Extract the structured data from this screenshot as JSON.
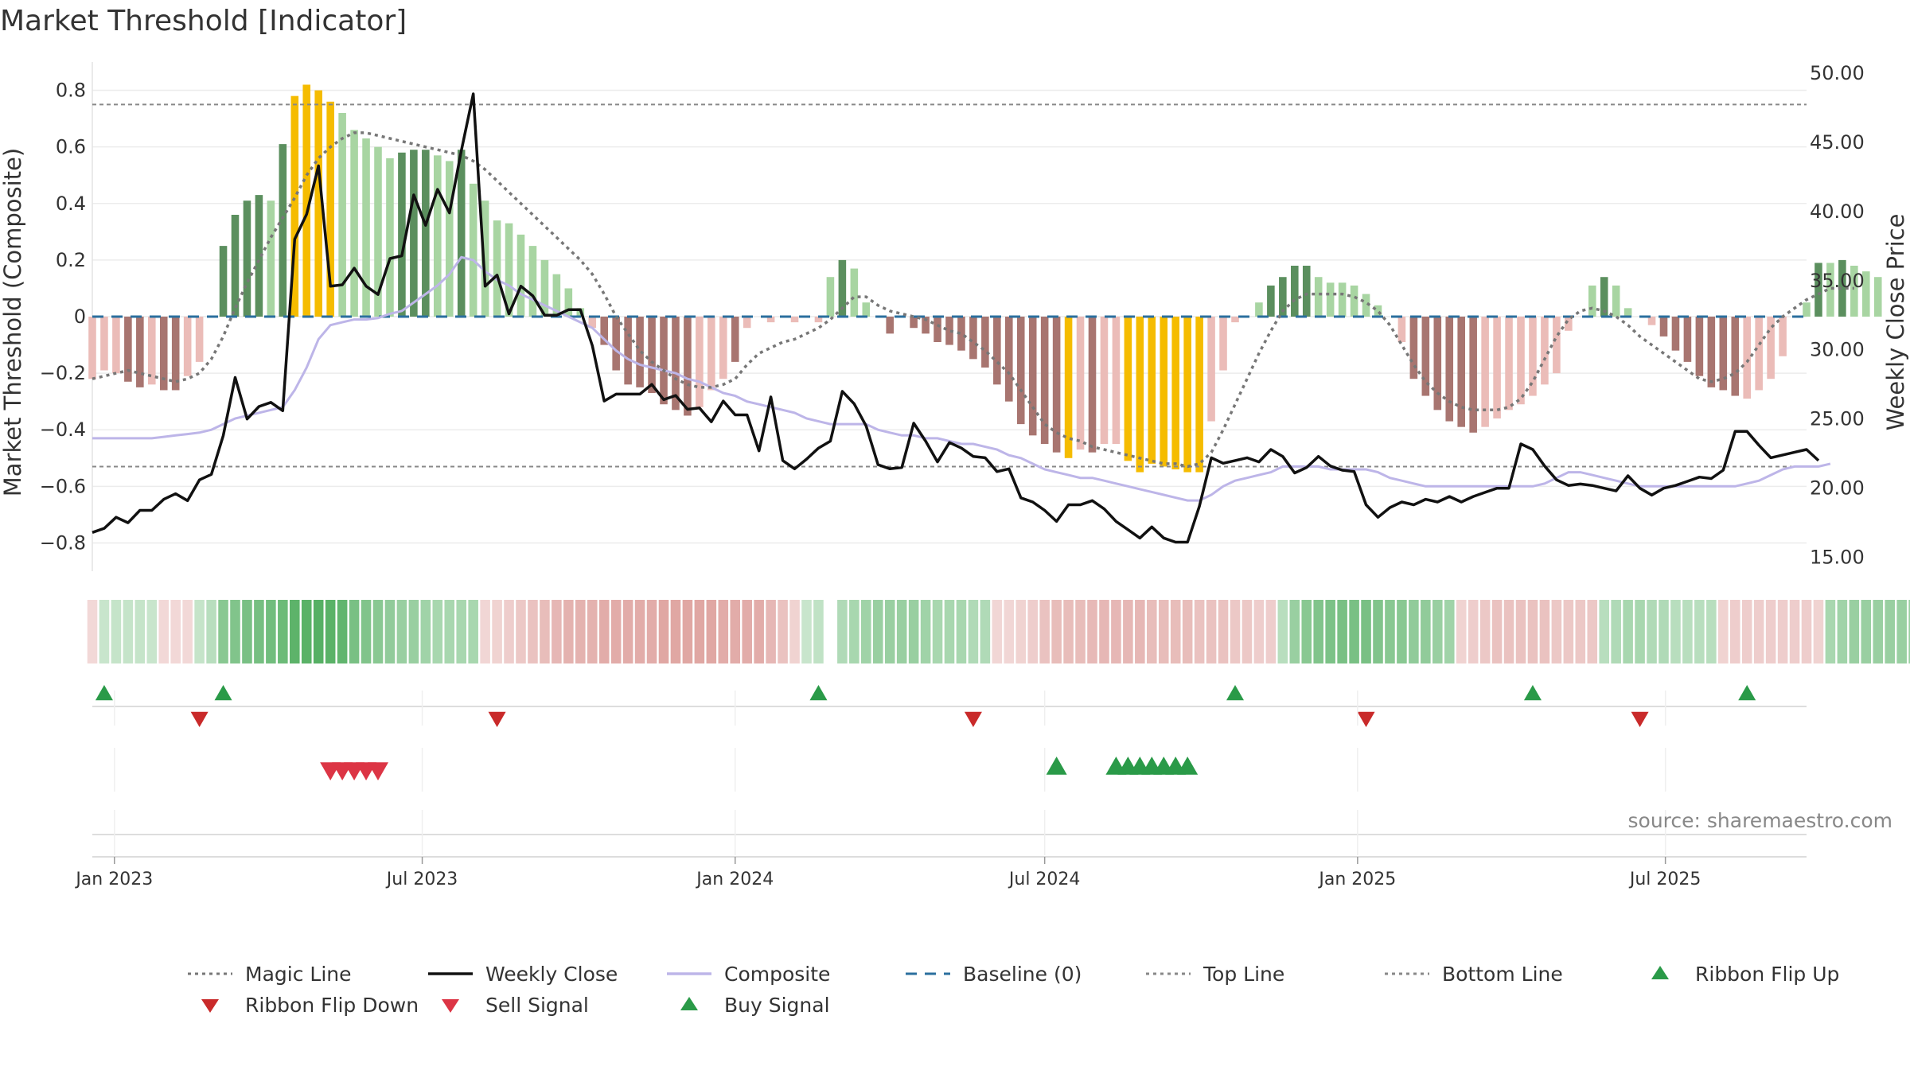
{
  "chart_data": {
    "type": "bar",
    "title": "Market Threshold [Indicator]",
    "ylabel": "Market Threshold (Composite)",
    "y2label": "Weekly Close Price",
    "ylim": [
      -0.9,
      0.9
    ],
    "y2lim": [
      14.0,
      50.8
    ],
    "yticks": [
      0.8,
      0.6,
      0.4,
      0.2,
      0,
      -0.2,
      -0.4,
      -0.6,
      -0.8
    ],
    "ytick_labels": [
      "0.8",
      "0.6",
      "0.4",
      "0.2",
      "0",
      "−0.2",
      "−0.4",
      "−0.6",
      "−0.8"
    ],
    "y2ticks": [
      50,
      45,
      40,
      35,
      30,
      25,
      20,
      15
    ],
    "y2tick_labels": [
      "50.00",
      "45.00",
      "40.00",
      "35.00",
      "30.00",
      "25.00",
      "20.00",
      "15.00"
    ],
    "x_range": [
      "2022-12-19",
      "2025-09-22"
    ],
    "x_start_date": "2022-12-19",
    "x_step_days": 7,
    "xticks": [
      {
        "date": "2023-01-01",
        "label": "Jan 2023"
      },
      {
        "date": "2023-07-01",
        "label": "Jul 2023"
      },
      {
        "date": "2024-01-01",
        "label": "Jan 2024"
      },
      {
        "date": "2024-07-01",
        "label": "Jul 2024"
      },
      {
        "date": "2025-01-01",
        "label": "Jan 2025"
      },
      {
        "date": "2025-07-01",
        "label": "Jul 2025"
      }
    ],
    "top_line": 0.75,
    "bottom_line": -0.53,
    "baseline": 0,
    "grid": true,
    "legend_position": "bottom",
    "colors": {
      "pos_strong": "#5b8f5e",
      "pos_light": "#a8d5a2",
      "neg_strong": "#a87570",
      "neg_light": "#ebbcb8",
      "extreme": "#f5bc00",
      "close": "#111111",
      "composite": "#bdb5e8",
      "magic": "#777777",
      "baseline": "#2b6f9e",
      "ref_line": "#888888",
      "flip_up": "#2a9a48",
      "flip_down": "#c92a2a",
      "sell": "#dc3545",
      "buy": "#2a9a48"
    },
    "series": [
      {
        "name": "Composite Bars",
        "values": [
          -0.22,
          -0.19,
          -0.2,
          -0.23,
          -0.25,
          -0.24,
          -0.26,
          -0.26,
          -0.21,
          -0.16,
          0,
          0.25,
          0.36,
          0.41,
          0.43,
          0.41,
          0.61,
          0.78,
          0.82,
          0.8,
          0.76,
          0.72,
          0.66,
          0.63,
          0.6,
          0.56,
          0.58,
          0.59,
          0.59,
          0.57,
          0.55,
          0.59,
          0.47,
          0.41,
          0.34,
          0.33,
          0.29,
          0.25,
          0.2,
          0.15,
          0.1,
          0.03,
          -0.04,
          -0.1,
          -0.19,
          -0.24,
          -0.25,
          -0.27,
          -0.31,
          -0.33,
          -0.35,
          -0.32,
          -0.26,
          -0.22,
          -0.16,
          -0.04,
          0,
          -0.02,
          0,
          -0.02,
          0,
          -0.02,
          0.14,
          0.2,
          0.17,
          0.05,
          0,
          -0.06,
          0,
          -0.04,
          -0.06,
          -0.09,
          -0.1,
          -0.12,
          -0.15,
          -0.18,
          -0.24,
          -0.3,
          -0.38,
          -0.42,
          -0.45,
          -0.48,
          -0.5,
          -0.47,
          -0.48,
          -0.45,
          -0.45,
          -0.51,
          -0.55,
          -0.52,
          -0.53,
          -0.54,
          -0.55,
          -0.55,
          -0.37,
          -0.19,
          -0.02,
          0,
          0.05,
          0.11,
          0.14,
          0.18,
          0.18,
          0.14,
          0.12,
          0.12,
          0.11,
          0.08,
          0.04,
          0,
          -0.09,
          -0.22,
          -0.28,
          -0.33,
          -0.37,
          -0.39,
          -0.41,
          -0.39,
          -0.36,
          -0.33,
          -0.31,
          -0.28,
          -0.24,
          -0.2,
          -0.05,
          0,
          0.11,
          0.14,
          0.11,
          0.03,
          0,
          -0.03,
          -0.07,
          -0.12,
          -0.16,
          -0.21,
          -0.25,
          -0.26,
          -0.28,
          -0.29,
          -0.26,
          -0.22,
          -0.14,
          0,
          0.05,
          0.19,
          0.19,
          0.2,
          0.18,
          0.16,
          0.14
        ],
        "shades": [
          "L",
          "L",
          "L",
          "S",
          "S",
          "L",
          "S",
          "S",
          "L",
          "L",
          "N",
          "S",
          "S",
          "S",
          "S",
          "L",
          "S",
          "Y",
          "Y",
          "Y",
          "Y",
          "L",
          "L",
          "L",
          "L",
          "L",
          "S",
          "S",
          "S",
          "L",
          "L",
          "S",
          "L",
          "L",
          "L",
          "L",
          "L",
          "L",
          "L",
          "L",
          "L",
          "L",
          "L",
          "S",
          "S",
          "S",
          "S",
          "S",
          "S",
          "S",
          "S",
          "L",
          "L",
          "L",
          "S",
          "L",
          "N",
          "L",
          "N",
          "L",
          "N",
          "L",
          "L",
          "S",
          "L",
          "L",
          "N",
          "S",
          "N",
          "S",
          "S",
          "S",
          "S",
          "S",
          "S",
          "S",
          "S",
          "S",
          "S",
          "S",
          "S",
          "S",
          "Y",
          "L",
          "S",
          "L",
          "L",
          "Y",
          "Y",
          "Y",
          "Y",
          "Y",
          "Y",
          "Y",
          "L",
          "L",
          "L",
          "N",
          "L",
          "S",
          "S",
          "S",
          "S",
          "L",
          "L",
          "L",
          "L",
          "L",
          "L",
          "N",
          "L",
          "S",
          "S",
          "S",
          "S",
          "S",
          "S",
          "L",
          "L",
          "L",
          "L",
          "L",
          "L",
          "L",
          "L",
          "N",
          "L",
          "S",
          "L",
          "L",
          "N",
          "L",
          "S",
          "S",
          "S",
          "S",
          "S",
          "S",
          "S",
          "L",
          "L",
          "L",
          "L",
          "N",
          "L",
          "S",
          "L",
          "S",
          "L",
          "L",
          "L"
        ]
      },
      {
        "name": "Weekly Close",
        "values": [
          16.8,
          17.1,
          17.9,
          17.5,
          18.4,
          18.4,
          19.2,
          19.6,
          19.1,
          20.6,
          21.0,
          23.8,
          28.0,
          25.0,
          25.9,
          26.2,
          25.6,
          38.0,
          39.8,
          43.3,
          34.6,
          34.7,
          35.9,
          34.6,
          34.0,
          36.6,
          36.8,
          41.2,
          39.0,
          41.6,
          39.9,
          44.4,
          48.5,
          34.6,
          35.4,
          32.6,
          34.6,
          33.9,
          32.5,
          32.5,
          32.9,
          32.9,
          30.3,
          26.3,
          26.8,
          26.8,
          26.8,
          27.5,
          26.4,
          26.7,
          25.7,
          25.8,
          24.8,
          26.3,
          25.3,
          25.3,
          22.7,
          26.6,
          22.0,
          21.4,
          22.1,
          22.9,
          23.4,
          27.0,
          26.1,
          24.5,
          21.7,
          21.4,
          21.5,
          24.7,
          23.4,
          21.9,
          23.3,
          22.9,
          22.3,
          22.2,
          21.2,
          21.4,
          19.3,
          19.0,
          18.4,
          17.6,
          18.8,
          18.8,
          19.1,
          18.5,
          17.6,
          17.0,
          16.4,
          17.2,
          16.4,
          16.1,
          16.1,
          18.7,
          22.2,
          21.8,
          22.0,
          22.2,
          21.9,
          22.8,
          22.3,
          21.1,
          21.5,
          22.3,
          21.6,
          21.3,
          21.2,
          18.8,
          17.9,
          18.6,
          19.0,
          18.8,
          19.2,
          19.0,
          19.4,
          19.0,
          19.4,
          19.7,
          20.0,
          20.0,
          23.2,
          22.8,
          21.6,
          20.6,
          20.2,
          20.3,
          20.2,
          20.0,
          19.8,
          20.9,
          20.0,
          19.5,
          20.0,
          20.2,
          20.5,
          20.8,
          20.7,
          21.3,
          24.1,
          24.1,
          23.1,
          22.2,
          22.4,
          22.6,
          22.8,
          22.0
        ]
      },
      {
        "name": "Composite",
        "values": [
          -0.43,
          -0.43,
          -0.43,
          -0.43,
          -0.43,
          -0.43,
          -0.425,
          -0.42,
          -0.415,
          -0.41,
          -0.4,
          -0.38,
          -0.36,
          -0.35,
          -0.34,
          -0.33,
          -0.32,
          -0.26,
          -0.18,
          -0.08,
          -0.03,
          -0.02,
          -0.01,
          -0.01,
          -0.005,
          0.01,
          0.02,
          0.05,
          0.08,
          0.11,
          0.15,
          0.21,
          0.2,
          0.16,
          0.13,
          0.11,
          0.08,
          0.06,
          0.04,
          0.02,
          0,
          -0.02,
          -0.04,
          -0.08,
          -0.12,
          -0.15,
          -0.17,
          -0.18,
          -0.19,
          -0.2,
          -0.22,
          -0.23,
          -0.25,
          -0.27,
          -0.28,
          -0.3,
          -0.31,
          -0.32,
          -0.33,
          -0.34,
          -0.36,
          -0.37,
          -0.38,
          -0.38,
          -0.38,
          -0.38,
          -0.4,
          -0.41,
          -0.42,
          -0.42,
          -0.43,
          -0.43,
          -0.44,
          -0.45,
          -0.45,
          -0.46,
          -0.47,
          -0.49,
          -0.5,
          -0.52,
          -0.54,
          -0.55,
          -0.56,
          -0.57,
          -0.57,
          -0.58,
          -0.59,
          -0.6,
          -0.61,
          -0.62,
          -0.63,
          -0.64,
          -0.65,
          -0.65,
          -0.63,
          -0.6,
          -0.58,
          -0.57,
          -0.56,
          -0.55,
          -0.53,
          -0.53,
          -0.53,
          -0.53,
          -0.54,
          -0.54,
          -0.54,
          -0.54,
          -0.55,
          -0.57,
          -0.58,
          -0.59,
          -0.6,
          -0.6,
          -0.6,
          -0.6,
          -0.6,
          -0.6,
          -0.6,
          -0.6,
          -0.6,
          -0.6,
          -0.59,
          -0.57,
          -0.55,
          -0.55,
          -0.56,
          -0.57,
          -0.58,
          -0.59,
          -0.6,
          -0.6,
          -0.6,
          -0.6,
          -0.6,
          -0.6,
          -0.6,
          -0.6,
          -0.6,
          -0.59,
          -0.58,
          -0.56,
          -0.54,
          -0.53,
          -0.53,
          -0.53,
          -0.52
        ]
      },
      {
        "name": "Magic Line",
        "values": [
          -0.22,
          -0.21,
          -0.2,
          -0.19,
          -0.2,
          -0.21,
          -0.22,
          -0.23,
          -0.22,
          -0.2,
          -0.15,
          -0.07,
          0.03,
          0.12,
          0.2,
          0.28,
          0.35,
          0.42,
          0.5,
          0.56,
          0.6,
          0.63,
          0.65,
          0.65,
          0.64,
          0.63,
          0.62,
          0.61,
          0.6,
          0.59,
          0.58,
          0.57,
          0.55,
          0.52,
          0.48,
          0.44,
          0.4,
          0.36,
          0.32,
          0.28,
          0.24,
          0.2,
          0.15,
          0.08,
          0,
          -0.06,
          -0.12,
          -0.16,
          -0.19,
          -0.22,
          -0.24,
          -0.25,
          -0.25,
          -0.24,
          -0.22,
          -0.17,
          -0.13,
          -0.11,
          -0.09,
          -0.08,
          -0.06,
          -0.04,
          -0.01,
          0.03,
          0.07,
          0.07,
          0.04,
          0.02,
          0.01,
          0,
          -0.01,
          -0.03,
          -0.05,
          -0.06,
          -0.09,
          -0.12,
          -0.16,
          -0.2,
          -0.26,
          -0.32,
          -0.38,
          -0.41,
          -0.43,
          -0.44,
          -0.46,
          -0.47,
          -0.48,
          -0.49,
          -0.5,
          -0.51,
          -0.52,
          -0.52,
          -0.53,
          -0.52,
          -0.48,
          -0.4,
          -0.31,
          -0.22,
          -0.13,
          -0.05,
          0.02,
          0.06,
          0.08,
          0.08,
          0.08,
          0.08,
          0.07,
          0.05,
          0.02,
          -0.03,
          -0.1,
          -0.17,
          -0.23,
          -0.27,
          -0.3,
          -0.32,
          -0.33,
          -0.33,
          -0.33,
          -0.32,
          -0.29,
          -0.23,
          -0.15,
          -0.07,
          -0.01,
          0.02,
          0.03,
          0.02,
          0,
          -0.03,
          -0.07,
          -0.1,
          -0.13,
          -0.16,
          -0.19,
          -0.22,
          -0.23,
          -0.22,
          -0.2,
          -0.16,
          -0.1,
          -0.04,
          0,
          0.03,
          0.06,
          0.08,
          0.1,
          0.1,
          0.1
        ]
      },
      {
        "name": "Ribbon",
        "values": [
          -0.1,
          0.1,
          0.12,
          0.12,
          0.12,
          0.1,
          -0.1,
          -0.1,
          -0.1,
          0.12,
          0.2,
          0.5,
          0.55,
          0.6,
          0.62,
          0.65,
          0.68,
          0.78,
          0.8,
          0.82,
          0.8,
          0.75,
          0.6,
          0.55,
          0.5,
          0.45,
          0.4,
          0.4,
          0.35,
          0.3,
          0.3,
          0.3,
          0.3,
          -0.12,
          -0.15,
          -0.2,
          -0.25,
          -0.3,
          -0.35,
          -0.4,
          -0.45,
          -0.45,
          -0.45,
          -0.5,
          -0.5,
          -0.5,
          -0.5,
          -0.5,
          -0.55,
          -0.55,
          -0.55,
          -0.55,
          -0.55,
          -0.5,
          -0.5,
          -0.5,
          -0.5,
          -0.4,
          -0.3,
          -0.15,
          0.1,
          0.15,
          null,
          0.25,
          0.3,
          0.35,
          0.4,
          0.4,
          0.4,
          0.4,
          0.35,
          0.3,
          0.3,
          0.3,
          0.25,
          0.25,
          -0.12,
          -0.12,
          -0.15,
          -0.2,
          -0.3,
          -0.35,
          -0.35,
          -0.35,
          -0.38,
          -0.4,
          -0.4,
          -0.4,
          -0.4,
          -0.35,
          -0.35,
          -0.35,
          -0.35,
          -0.3,
          -0.3,
          -0.3,
          -0.25,
          -0.25,
          -0.2,
          -0.2,
          0.2,
          0.4,
          0.5,
          0.55,
          0.58,
          0.6,
          0.6,
          0.6,
          0.55,
          0.5,
          0.5,
          0.45,
          0.45,
          0.4,
          0.35,
          -0.15,
          -0.2,
          -0.25,
          -0.3,
          -0.3,
          -0.3,
          -0.3,
          -0.3,
          -0.25,
          -0.25,
          -0.25,
          -0.25,
          0.2,
          0.25,
          0.3,
          0.3,
          0.25,
          0.25,
          0.2,
          0.2,
          0.2,
          0.2,
          -0.15,
          -0.2,
          -0.2,
          -0.2,
          -0.2,
          -0.2,
          -0.2,
          -0.2,
          -0.15,
          0.3,
          0.35,
          0.4,
          0.4,
          0.4,
          0.4,
          0.4,
          0.4,
          0.4,
          0.4
        ]
      },
      {
        "name": "Ribbon Flip Up",
        "marker": "triangle-up",
        "dates": [
          "2022-12-26",
          "2023-03-06",
          "2024-02-19",
          "2024-10-21",
          "2025-04-14",
          "2025-08-18"
        ]
      },
      {
        "name": "Ribbon Flip Down",
        "marker": "triangle-down",
        "dates": [
          "2023-02-20",
          "2023-08-14",
          "2024-05-20",
          "2025-01-06",
          "2025-06-16"
        ]
      },
      {
        "name": "Sell Signal",
        "marker": "triangle-down",
        "dates": [
          "2023-05-08",
          "2023-05-15",
          "2023-05-22",
          "2023-05-29",
          "2023-06-05"
        ]
      },
      {
        "name": "Buy Signal",
        "marker": "triangle-up",
        "dates": [
          "2024-07-08",
          "2024-08-12",
          "2024-08-19",
          "2024-08-26",
          "2024-09-02",
          "2024-09-09",
          "2024-09-16",
          "2024-09-23"
        ]
      }
    ],
    "legend": [
      {
        "label": "Magic Line",
        "kind": "dotted",
        "color": "#777777"
      },
      {
        "label": "Weekly Close",
        "kind": "solid",
        "color": "#111111"
      },
      {
        "label": "Composite",
        "kind": "solid",
        "color": "#bdb5e8"
      },
      {
        "label": "Baseline (0)",
        "kind": "dashed",
        "color": "#2b6f9e"
      },
      {
        "label": "Top Line",
        "kind": "dotted",
        "color": "#888888"
      },
      {
        "label": "Bottom Line",
        "kind": "dotted",
        "color": "#888888"
      },
      {
        "label": "Ribbon Flip Up",
        "kind": "tri-up",
        "color": "#2a9a48"
      },
      {
        "label": "Ribbon Flip Down",
        "kind": "tri-down",
        "color": "#c92a2a"
      },
      {
        "label": "Sell Signal",
        "kind": "tri-down",
        "color": "#dc3545"
      },
      {
        "label": "Buy Signal",
        "kind": "tri-up",
        "color": "#2a9a48"
      }
    ],
    "source": "source: sharemaestro.com"
  }
}
